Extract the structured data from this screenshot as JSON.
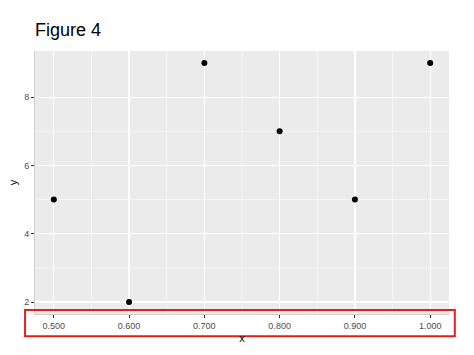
{
  "chart_data": {
    "type": "scatter",
    "title": "Figure 4",
    "x_label": "x",
    "y_label": "y",
    "x": [
      0.5,
      0.6,
      0.7,
      0.8,
      0.9,
      1.0
    ],
    "values": [
      5,
      2,
      9,
      7,
      5,
      9
    ],
    "color": "#000000",
    "marker": "circle",
    "xlim": [
      0.475,
      1.025
    ],
    "xticks": [
      {
        "value": 0.5,
        "label": "0.500"
      },
      {
        "value": 0.6,
        "label": "0.600"
      },
      {
        "value": 0.7,
        "label": "0.700"
      },
      {
        "value": 0.8,
        "label": "0.800"
      },
      {
        "value": 0.9,
        "label": "0.900"
      },
      {
        "value": 1.0,
        "label": "1.000"
      }
    ],
    "ylim": [
      1.65,
      9.35
    ],
    "yticks": [
      2,
      4,
      6,
      8
    ],
    "grid": true
  }
}
